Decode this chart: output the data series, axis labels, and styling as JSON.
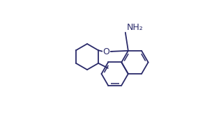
{
  "background_color": "#ffffff",
  "line_color": "#2a2a6a",
  "line_width": 1.3,
  "text_color": "#2a2a6a",
  "font_size": 8.5,
  "NH2_label": "NH₂",
  "O_label": "O",
  "figsize": [
    2.84,
    1.91
  ],
  "dpi": 100
}
